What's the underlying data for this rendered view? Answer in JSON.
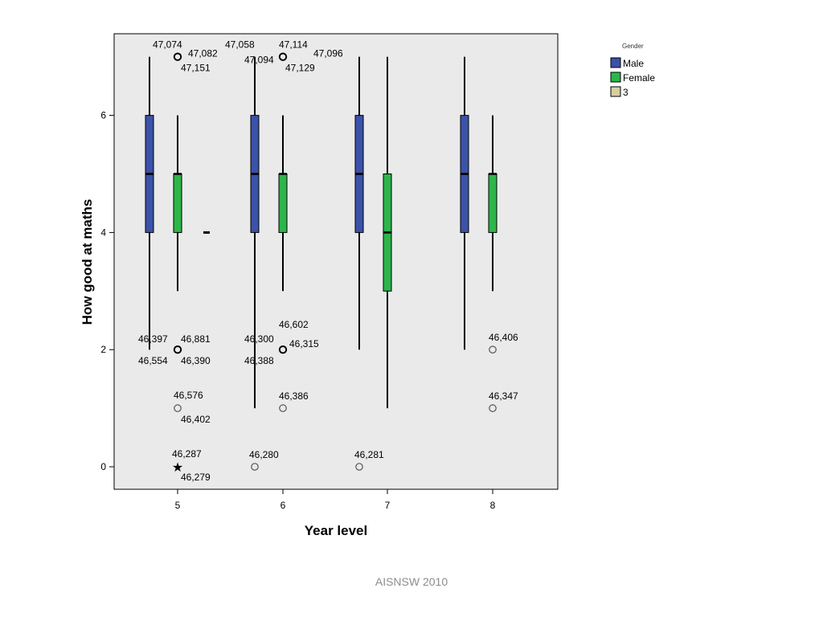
{
  "footer": "AISNSW 2010",
  "colors": {
    "male": "#3b52a9",
    "female": "#2db64a",
    "other": "#d6cfa1",
    "plot_bg": "#eaeaea"
  },
  "chart_data": {
    "type": "box",
    "xlabel": "Year level",
    "ylabel": "How good at maths",
    "categories": [
      "5",
      "6",
      "7",
      "8"
    ],
    "ylim": [
      -0.4,
      7.4
    ],
    "yticks": [
      0,
      2,
      4,
      6
    ],
    "grid": false,
    "legend": {
      "title": "Gender",
      "placement": "right",
      "entries": [
        {
          "label": "Male",
          "color": "#3b52a9"
        },
        {
          "label": "Female",
          "color": "#2db64a"
        },
        {
          "label": "3",
          "color": "#d6cfa1"
        }
      ]
    },
    "boxes": [
      {
        "category": "5",
        "group": "Male",
        "min": 2,
        "q1": 4,
        "median": 5,
        "q3": 6,
        "max": 7
      },
      {
        "category": "5",
        "group": "Female",
        "min": 3,
        "q1": 4,
        "median": 5,
        "q3": 5,
        "max": 6
      },
      {
        "category": "5",
        "group": "3",
        "min": 4,
        "q1": 4,
        "median": 4,
        "q3": 4,
        "max": 4
      },
      {
        "category": "6",
        "group": "Male",
        "min": 1,
        "q1": 4,
        "median": 5,
        "q3": 6,
        "max": 7
      },
      {
        "category": "6",
        "group": "Female",
        "min": 3,
        "q1": 4,
        "median": 5,
        "q3": 5,
        "max": 6
      },
      {
        "category": "7",
        "group": "Male",
        "min": 2,
        "q1": 4,
        "median": 5,
        "q3": 6,
        "max": 7
      },
      {
        "category": "7",
        "group": "Female",
        "min": 1,
        "q1": 3,
        "median": 4,
        "q3": 5,
        "max": 7
      },
      {
        "category": "8",
        "group": "Male",
        "min": 2,
        "q1": 4,
        "median": 5,
        "q3": 6,
        "max": 7
      },
      {
        "category": "8",
        "group": "Female",
        "min": 3,
        "q1": 4,
        "median": 5,
        "q3": 5,
        "max": 6
      }
    ],
    "outliers": [
      {
        "category": "5",
        "group": "Female",
        "value": 7,
        "marker": "circle",
        "labels": [
          "47,074",
          "47,082",
          "47,151"
        ]
      },
      {
        "category": "5",
        "group": "Female",
        "value": 2,
        "marker": "circle",
        "labels": [
          "46,397",
          "46,881",
          "46,554",
          "46,390"
        ]
      },
      {
        "category": "5",
        "group": "Female",
        "value": 1,
        "marker": "circle",
        "labels": [
          "46,576",
          "46,402"
        ]
      },
      {
        "category": "5",
        "group": "Female",
        "value": 0,
        "marker": "star",
        "labels": [
          "46,287",
          "46,279"
        ]
      },
      {
        "category": "6",
        "group": "Female",
        "value": 7,
        "marker": "circle",
        "labels": [
          "47,058",
          "47,114",
          "47,094",
          "47,096",
          "47,129"
        ]
      },
      {
        "category": "6",
        "group": "Female",
        "value": 2,
        "marker": "circle",
        "labels": [
          "46,300",
          "46,602",
          "46,315",
          "46,388"
        ]
      },
      {
        "category": "6",
        "group": "Female",
        "value": 1,
        "marker": "circle",
        "labels": [
          "46,386"
        ]
      },
      {
        "category": "6",
        "group": "Male",
        "value": 0,
        "marker": "circle",
        "labels": [
          "46,280"
        ]
      },
      {
        "category": "7",
        "group": "Male",
        "value": 0,
        "marker": "circle",
        "labels": [
          "46,281"
        ]
      },
      {
        "category": "8",
        "group": "Female",
        "value": 2,
        "marker": "circle",
        "labels": [
          "46,406"
        ]
      },
      {
        "category": "8",
        "group": "Female",
        "value": 1,
        "marker": "circle",
        "labels": [
          "46,347"
        ]
      }
    ]
  }
}
